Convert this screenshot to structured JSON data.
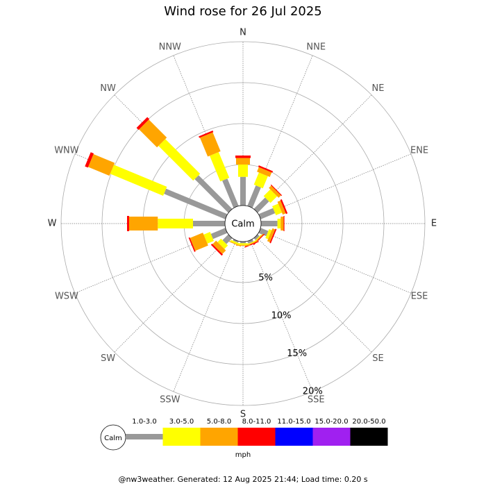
{
  "chart_data": {
    "type": "windrose",
    "title": "Wind rose for 26 Jul 2025",
    "categories": [
      "N",
      "NNE",
      "NE",
      "ENE",
      "E",
      "ESE",
      "SE",
      "SSE",
      "S",
      "SSW",
      "SW",
      "WSW",
      "W",
      "WNW",
      "NW",
      "NNW"
    ],
    "series": [
      {
        "name": "1.0-3.0",
        "color": "#999999",
        "values": [
          3.5,
          2.7,
          1.95,
          1.9,
          2.0,
          1.0,
          0.3,
          0.3,
          0.2,
          0.2,
          1.0,
          1.9,
          3.9,
          8.1,
          5.8,
          3.6
        ]
      },
      {
        "name": "3.0-5.0",
        "color": "#ffff00",
        "values": [
          1.5,
          1.6,
          1.15,
          0.8,
          0.4,
          0.35,
          0.1,
          0.1,
          0.2,
          0.2,
          0.6,
          0.85,
          4.3,
          7.0,
          6.0,
          3.4
        ]
      },
      {
        "name": "5.0-8.0",
        "color": "#ffa500",
        "values": [
          0.8,
          0.6,
          0.4,
          0.4,
          0.35,
          0.35,
          0.1,
          0.1,
          0.1,
          0.1,
          0.6,
          1.7,
          3.5,
          2.8,
          3.1,
          2.5
        ]
      },
      {
        "name": "8.0-11.0",
        "color": "#ff0000",
        "values": [
          0.3,
          0.2,
          0.1,
          0.2,
          0.1,
          0.15,
          0.1,
          0.1,
          0,
          0,
          0.2,
          0.15,
          0.25,
          0.4,
          0.35,
          0.2
        ]
      },
      {
        "name": "11.0-15.0",
        "color": "#0000ff",
        "values": [
          0,
          0,
          0,
          0,
          0,
          0,
          0,
          0,
          0,
          0,
          0,
          0,
          0,
          0,
          0,
          0
        ]
      },
      {
        "name": "15.0-20.0",
        "color": "#a020f0",
        "values": [
          0,
          0,
          0,
          0,
          0,
          0,
          0,
          0,
          0,
          0,
          0,
          0,
          0,
          0,
          0,
          0
        ]
      },
      {
        "name": "20.0-50.0",
        "color": "#000000",
        "values": [
          0,
          0,
          0,
          0,
          0,
          0,
          0,
          0,
          0,
          0,
          0,
          0,
          0,
          0,
          0,
          0
        ]
      }
    ],
    "rlim": [
      0,
      20
    ],
    "rticks": [
      {
        "value": 5,
        "label": "5%"
      },
      {
        "value": 10,
        "label": "10%"
      },
      {
        "value": 15,
        "label": "15%"
      },
      {
        "value": 20,
        "label": "20%"
      }
    ],
    "calm_label": "Calm",
    "units_label": "mph",
    "footer": "@nw3weather. Generated: 12 Aug 2025 21:44; Load time: 0.20 s"
  }
}
